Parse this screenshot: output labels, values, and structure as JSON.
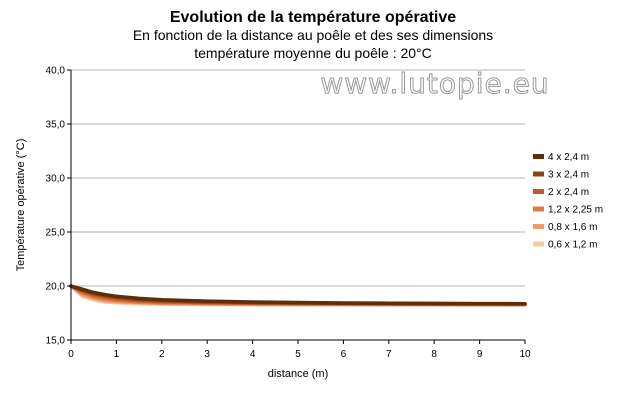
{
  "chart_data": {
    "type": "line",
    "title": "Evolution de la température opérative",
    "subtitle_lines": [
      "En fonction de la distance au poêle et des ses dimensions",
      "température moyenne du poêle :  20°C"
    ],
    "watermark": "www.lutopie.eu",
    "xlabel": "distance (m)",
    "ylabel": "Température opérative (°C)",
    "xlim": [
      0,
      10
    ],
    "ylim": [
      15,
      40
    ],
    "x_ticks": [
      "0",
      "1",
      "2",
      "3",
      "4",
      "5",
      "6",
      "7",
      "8",
      "9",
      "10"
    ],
    "y_ticks": [
      "15,0",
      "20,0",
      "25,0",
      "30,0",
      "35,0",
      "40,0"
    ],
    "grid": "horizontal",
    "legend_position": "right",
    "x": [
      0,
      0.25,
      0.5,
      0.75,
      1,
      1.5,
      2,
      3,
      4,
      5,
      6,
      7,
      8,
      9,
      10
    ],
    "series": [
      {
        "name": "4 x 2,4 m",
        "color": "#5c2e0a",
        "values": [
          20.0,
          19.7,
          19.4,
          19.2,
          19.05,
          18.85,
          18.72,
          18.6,
          18.52,
          18.47,
          18.43,
          18.41,
          18.39,
          18.37,
          18.36
        ]
      },
      {
        "name": "3 x 2,4 m",
        "color": "#8b4513",
        "values": [
          20.0,
          19.6,
          19.3,
          19.1,
          18.95,
          18.75,
          18.64,
          18.53,
          18.47,
          18.43,
          18.4,
          18.38,
          18.36,
          18.35,
          18.34
        ]
      },
      {
        "name": "2 x 2,4 m",
        "color": "#c05a28",
        "values": [
          20.0,
          19.5,
          19.15,
          18.95,
          18.8,
          18.63,
          18.54,
          18.46,
          18.41,
          18.38,
          18.36,
          18.34,
          18.33,
          18.32,
          18.31
        ]
      },
      {
        "name": "1,2 x 2,25 m",
        "color": "#e07a45",
        "values": [
          20.0,
          19.35,
          19.0,
          18.8,
          18.67,
          18.52,
          18.45,
          18.39,
          18.35,
          18.33,
          18.32,
          18.31,
          18.3,
          18.29,
          18.29
        ]
      },
      {
        "name": "0,8 x 1,6 m",
        "color": "#f09a6a",
        "values": [
          20.0,
          19.2,
          18.85,
          18.65,
          18.55,
          18.44,
          18.38,
          18.33,
          18.31,
          18.3,
          18.29,
          18.28,
          18.28,
          18.27,
          18.27
        ]
      },
      {
        "name": "0,6 x 1,2 m",
        "color": "#f8c8a0",
        "values": [
          20.0,
          19.05,
          18.7,
          18.52,
          18.44,
          18.36,
          18.32,
          18.29,
          18.27,
          18.26,
          18.26,
          18.25,
          18.25,
          18.25,
          18.25
        ]
      }
    ]
  }
}
